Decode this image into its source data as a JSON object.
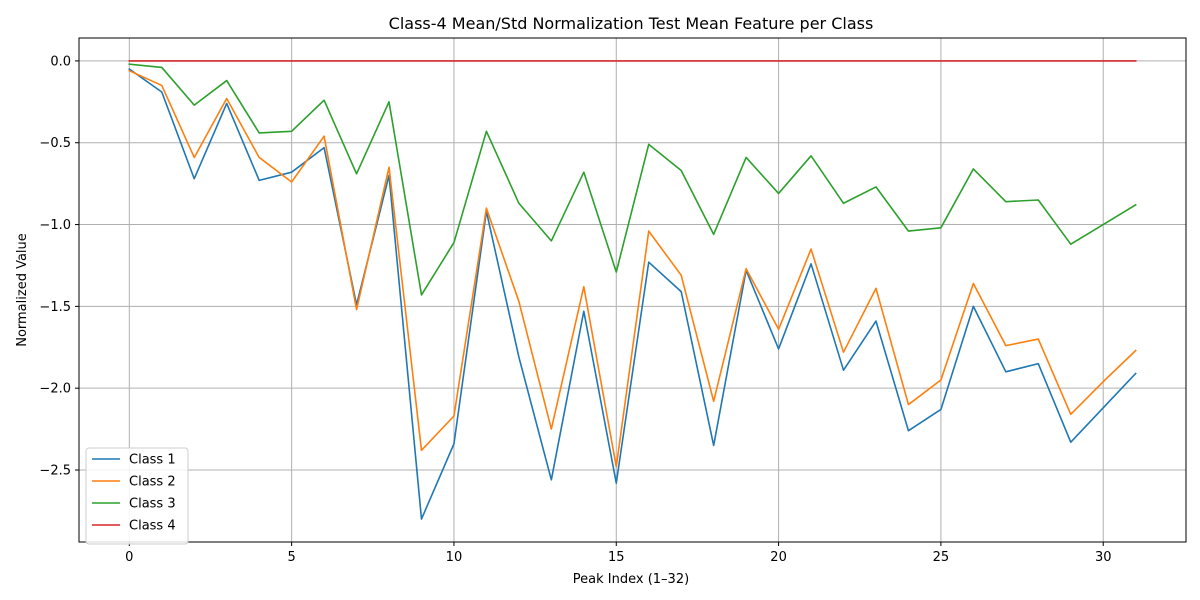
{
  "chart_data": {
    "type": "line",
    "title": "Class-4 Mean/Std Normalization Test Mean Feature per Class",
    "xlabel": "Peak Index (1–32)",
    "ylabel": "Normalized Value",
    "xlim": [
      -1.55,
      32.55
    ],
    "ylim": [
      -2.94,
      0.14
    ],
    "xticks": [
      0,
      5,
      10,
      15,
      20,
      25,
      30
    ],
    "yticks": [
      0.0,
      -0.5,
      -1.0,
      -1.5,
      -2.0,
      -2.5
    ],
    "xtick_labels": [
      "0",
      "5",
      "10",
      "15",
      "20",
      "25",
      "30"
    ],
    "ytick_labels": [
      "0.0",
      "−0.5",
      "−1.0",
      "−1.5",
      "−2.0",
      "−2.5"
    ],
    "grid": true,
    "legend_position": "lower-left",
    "x": [
      0,
      1,
      2,
      3,
      4,
      5,
      6,
      7,
      8,
      9,
      10,
      11,
      12,
      13,
      14,
      15,
      16,
      17,
      18,
      19,
      20,
      21,
      22,
      23,
      24,
      25,
      26,
      27,
      28,
      29,
      30,
      31
    ],
    "series": [
      {
        "name": "Class 1",
        "color": "#1f77b4",
        "values": [
          -0.05,
          -0.19,
          -0.72,
          -0.26,
          -0.73,
          -0.68,
          -0.53,
          -1.49,
          -0.7,
          -2.8,
          -2.34,
          -0.92,
          -1.81,
          -2.56,
          -1.53,
          -2.58,
          -1.23,
          -1.41,
          -2.35,
          -1.28,
          -1.76,
          -1.24,
          -1.89,
          -1.59,
          -2.26,
          -2.13,
          -1.5,
          -1.9,
          -1.85,
          -2.33,
          -2.12,
          -1.91
        ]
      },
      {
        "name": "Class 2",
        "color": "#ff7f0e",
        "values": [
          -0.06,
          -0.15,
          -0.59,
          -0.23,
          -0.59,
          -0.74,
          -0.46,
          -1.52,
          -0.65,
          -2.38,
          -2.17,
          -0.9,
          -1.47,
          -2.25,
          -1.38,
          -2.48,
          -1.04,
          -1.31,
          -2.08,
          -1.27,
          -1.64,
          -1.15,
          -1.78,
          -1.39,
          -2.1,
          -1.95,
          -1.36,
          -1.74,
          -1.7,
          -2.16,
          -1.96,
          -1.77
        ]
      },
      {
        "name": "Class 3",
        "color": "#2ca02c",
        "values": [
          -0.02,
          -0.04,
          -0.27,
          -0.12,
          -0.44,
          -0.43,
          -0.24,
          -0.69,
          -0.25,
          -1.43,
          -1.11,
          -0.43,
          -0.87,
          -1.1,
          -0.68,
          -1.29,
          -0.51,
          -0.67,
          -1.06,
          -0.59,
          -0.81,
          -0.58,
          -0.87,
          -0.77,
          -1.04,
          -1.02,
          -0.66,
          -0.86,
          -0.85,
          -1.12,
          -1.0,
          -0.88
        ]
      },
      {
        "name": "Class 4",
        "color": "#d62728",
        "values": [
          0,
          0,
          0,
          0,
          0,
          0,
          0,
          0,
          0,
          0,
          0,
          0,
          0,
          0,
          0,
          0,
          0,
          0,
          0,
          0,
          0,
          0,
          0,
          0,
          0,
          0,
          0,
          0,
          0,
          0,
          0,
          0
        ]
      }
    ]
  }
}
